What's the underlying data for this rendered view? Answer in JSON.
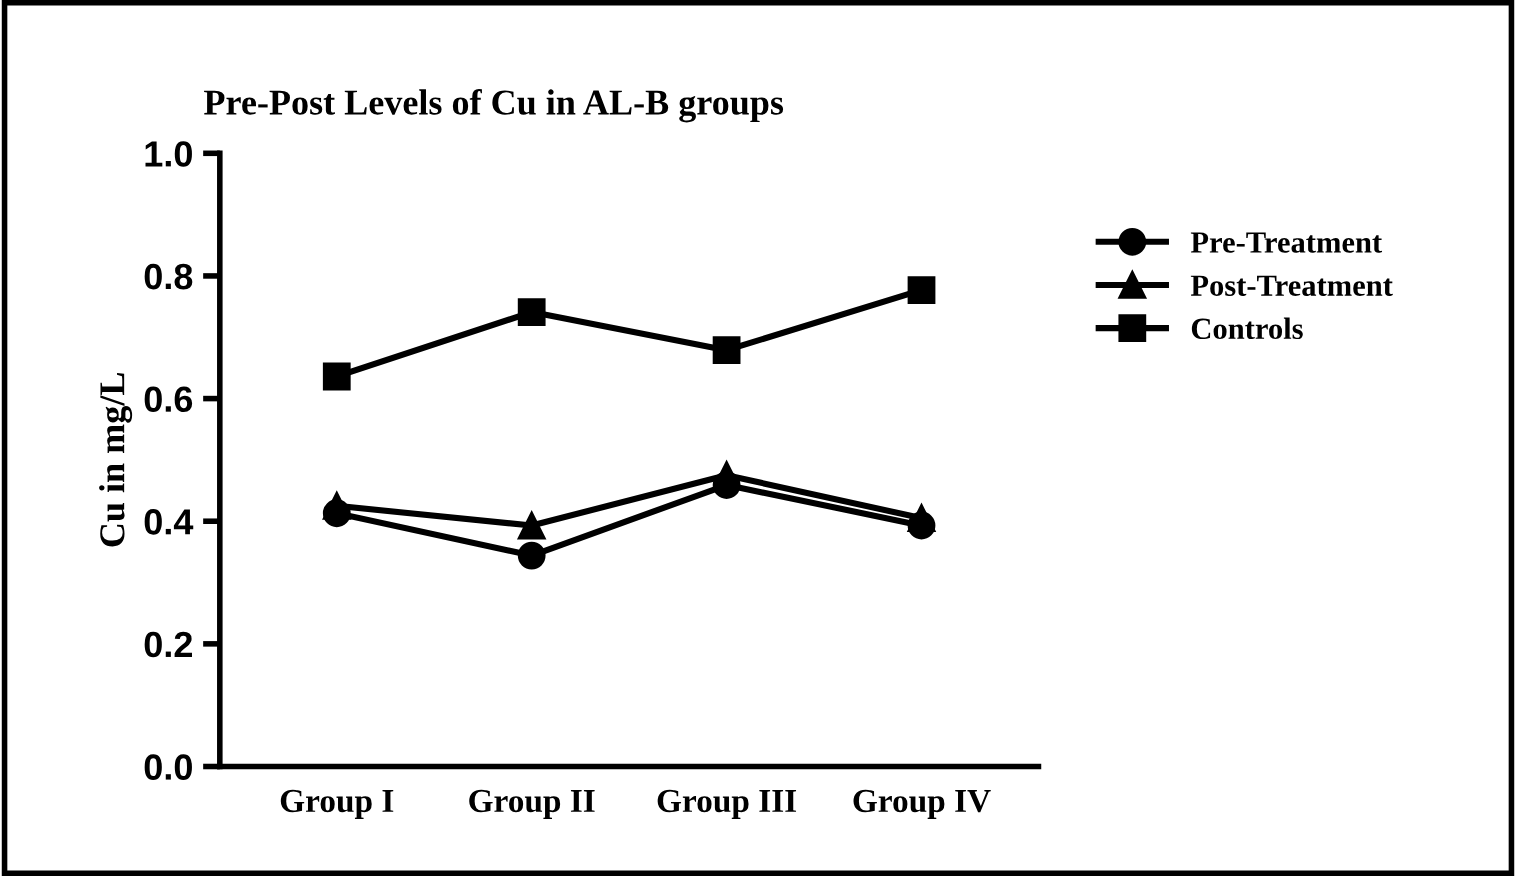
{
  "chart_data": {
    "type": "line",
    "title": "Pre-Post Levels of Cu in AL-B groups",
    "ylabel": "Cu in mg/L",
    "categories": [
      "Group I",
      "Group II",
      "Group III",
      "Group IV"
    ],
    "series": [
      {
        "name": "Pre-Treatment",
        "color": "#000000",
        "marker": "circle",
        "values": [
          0.413,
          0.344,
          0.459,
          0.393
        ]
      },
      {
        "name": "Post-Treatment",
        "color": "#000000",
        "marker": "triangle",
        "values": [
          0.425,
          0.393,
          0.475,
          0.405
        ]
      },
      {
        "name": "Controls",
        "color": "#000000",
        "marker": "square",
        "values": [
          0.636,
          0.741,
          0.679,
          0.777
        ]
      }
    ],
    "ylim": [
      0,
      1
    ],
    "yticks": [
      {
        "value": 0,
        "label": "0.0"
      },
      0.2,
      0.4,
      0.6,
      0.8,
      {
        "value": 1,
        "label": "1.0"
      }
    ],
    "grid": false,
    "legend": "right",
    "line_style": "solid"
  }
}
